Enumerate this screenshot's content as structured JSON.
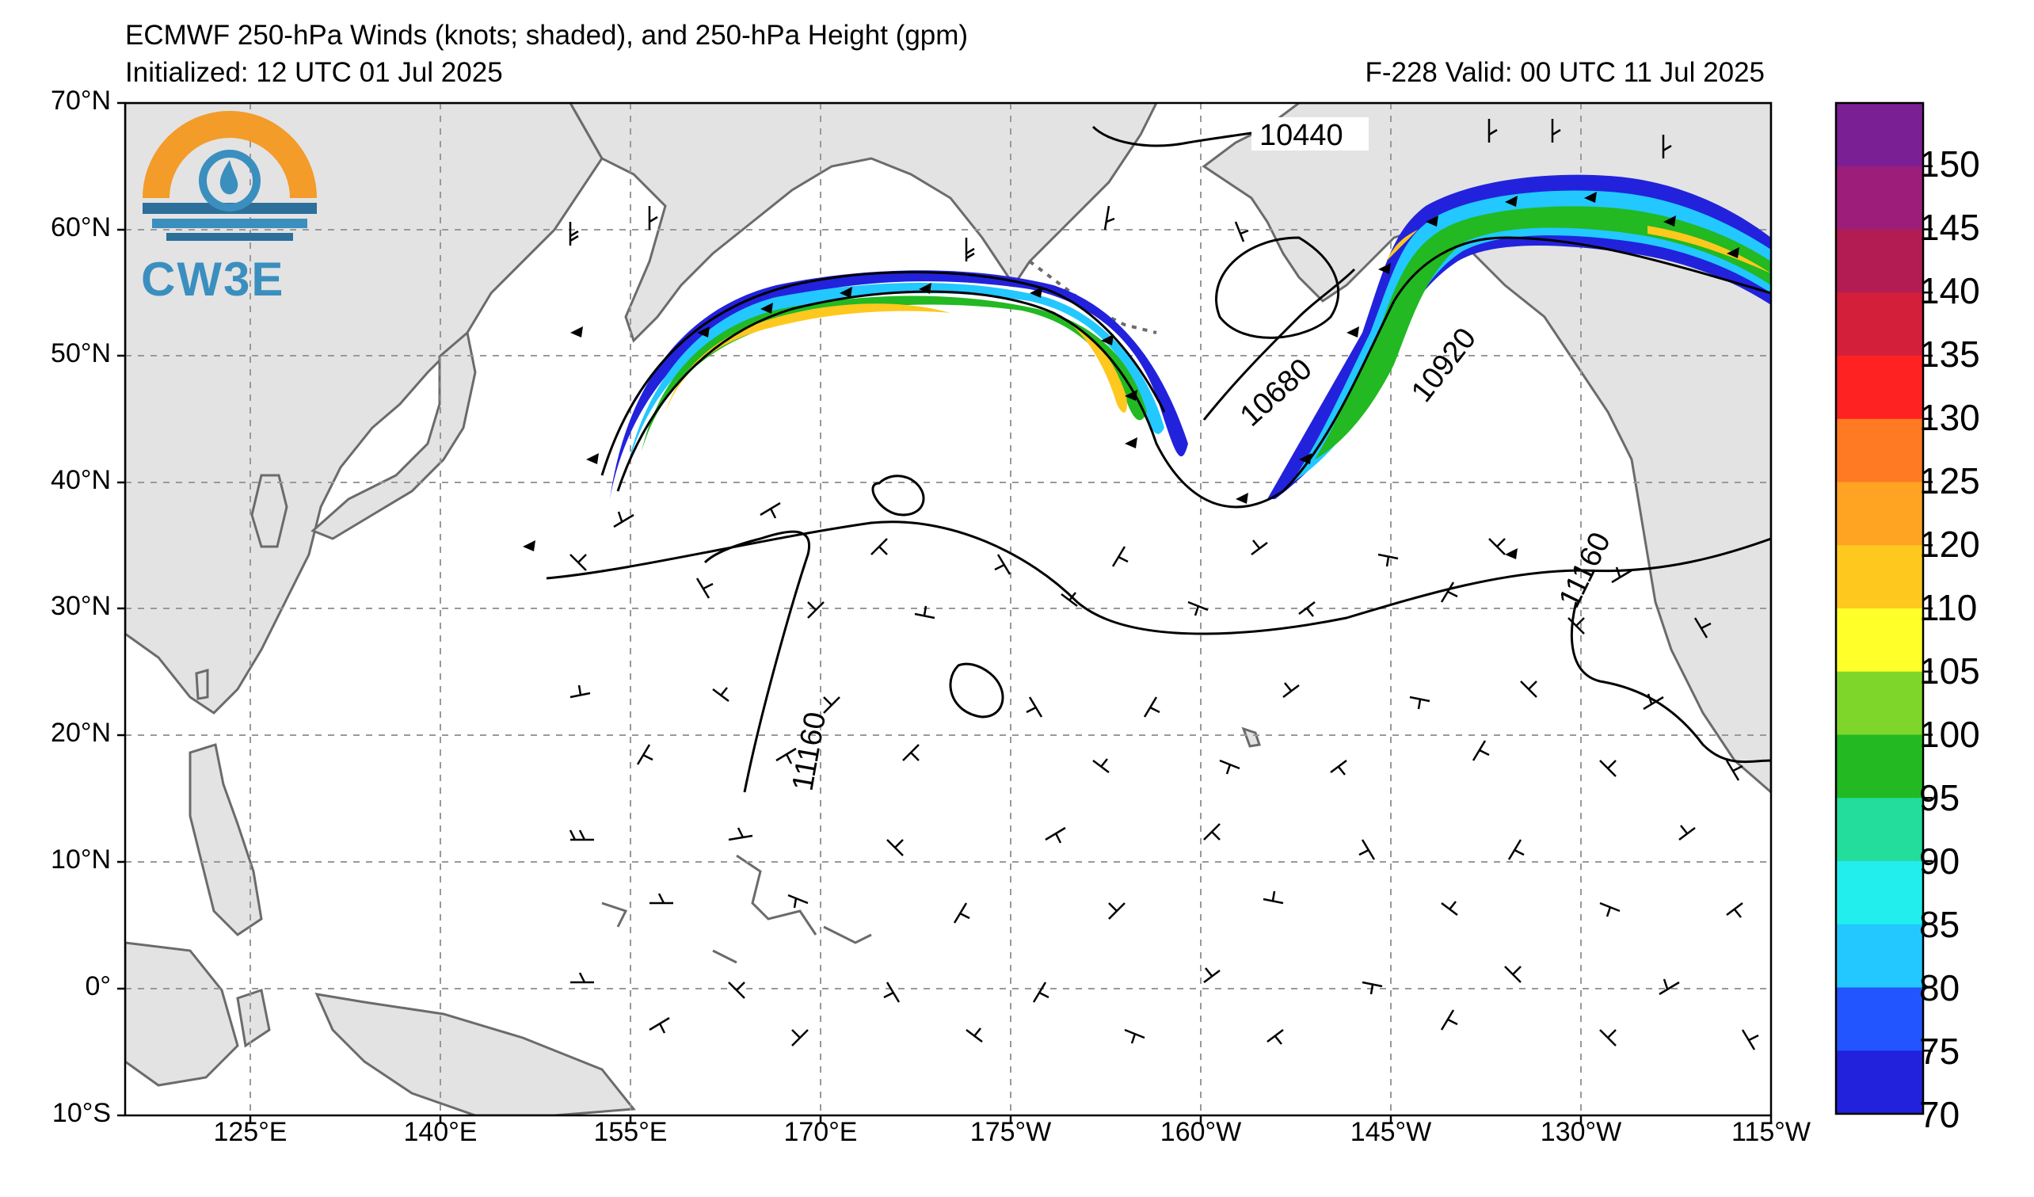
{
  "header": {
    "title": "ECMWF 250-hPa Winds (knots; shaded), and 250-hPa Height (gpm)",
    "initialized": "Initialized: 12 UTC 01 Jul 2025",
    "valid": "F-228  Valid: 00 UTC 11 Jul 2025"
  },
  "logo": {
    "text": "CW3E",
    "ring_color": "#f39c2a",
    "blue": "#3a8fbf"
  },
  "map": {
    "latitude_labels": [
      "70°N",
      "60°N",
      "50°N",
      "40°N",
      "30°N",
      "20°N",
      "10°N",
      "0°",
      "10°S"
    ],
    "longitude_labels": [
      "125°E",
      "140°E",
      "155°E",
      "170°E",
      "175°W",
      "160°W",
      "145°W",
      "130°W",
      "115°W"
    ],
    "contour_labels": [
      "10440",
      "10680",
      "10920",
      "11160",
      "11160"
    ],
    "land_color": "#e3e3e3",
    "coast_color": "#6b6b6b",
    "grid_color": "#999999"
  },
  "colorbar": {
    "labels": [
      "150",
      "145",
      "140",
      "135",
      "130",
      "125",
      "120",
      "110",
      "105",
      "100",
      "95",
      "90",
      "85",
      "80",
      "75",
      "70"
    ],
    "colors": [
      "#7b1f94",
      "#9c1d7a",
      "#b31c52",
      "#d41f3a",
      "#ff2222",
      "#ff7a22",
      "#ffa322",
      "#ffc81f",
      "#ffff2a",
      "#7fd62a",
      "#22b922",
      "#22dd9c",
      "#22eeee",
      "#22c8ff",
      "#2255ff",
      "#2222dd"
    ]
  }
}
